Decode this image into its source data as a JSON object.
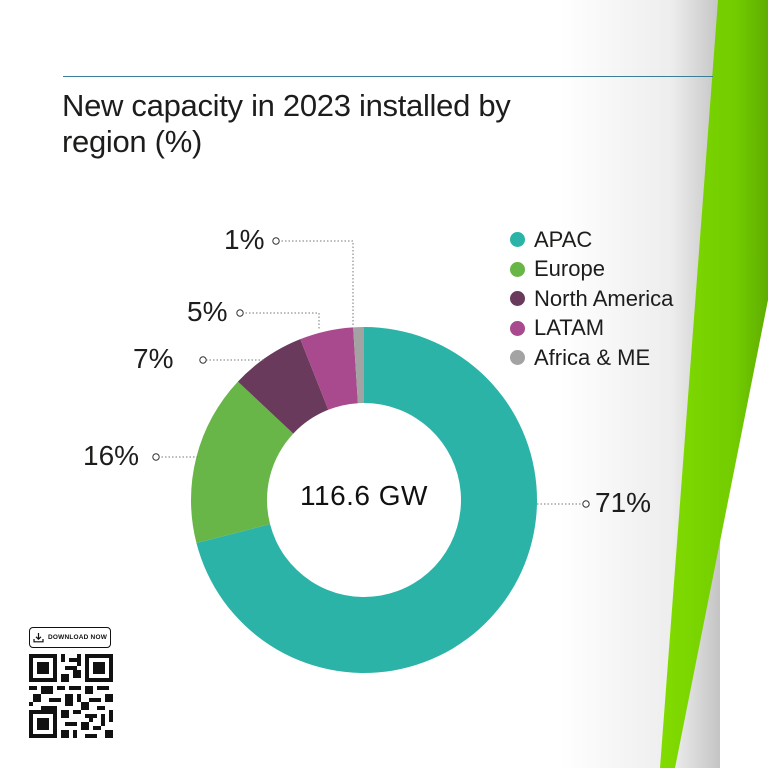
{
  "header": {
    "title": "New capacity in 2023 installed by region (%)"
  },
  "chart_data": {
    "type": "pie",
    "subtype": "donut",
    "title": "New capacity in 2023 installed by region (%)",
    "center_label": "116.6 GW",
    "categories": [
      "APAC",
      "Europe",
      "North America",
      "LATAM",
      "Africa & ME"
    ],
    "values": [
      71,
      16,
      7,
      5,
      1
    ],
    "unit": "%",
    "colors": [
      "#2bb3a8",
      "#68b548",
      "#6a3a5c",
      "#a84a8d",
      "#a3a3a3"
    ],
    "legend_position": "right",
    "data_labels": [
      "71%",
      "16%",
      "7%",
      "5%",
      "1%"
    ]
  },
  "legend": {
    "items": [
      {
        "label": "APAC",
        "color": "#2bb3a8"
      },
      {
        "label": "Europe",
        "color": "#68b548"
      },
      {
        "label": "North America",
        "color": "#6a3a5c"
      },
      {
        "label": "LATAM",
        "color": "#a84a8d"
      },
      {
        "label": "Africa & ME",
        "color": "#a3a3a3"
      }
    ]
  },
  "labels": {
    "apac": "71%",
    "europe": "16%",
    "north_america": "7%",
    "latam": "5%",
    "africa_me": "1%"
  },
  "download": {
    "label": "DOWNLOAD NOW",
    "icon": "download-icon"
  },
  "colors": {
    "accent_green": "#7ed600",
    "rule": "#3c7e97"
  }
}
